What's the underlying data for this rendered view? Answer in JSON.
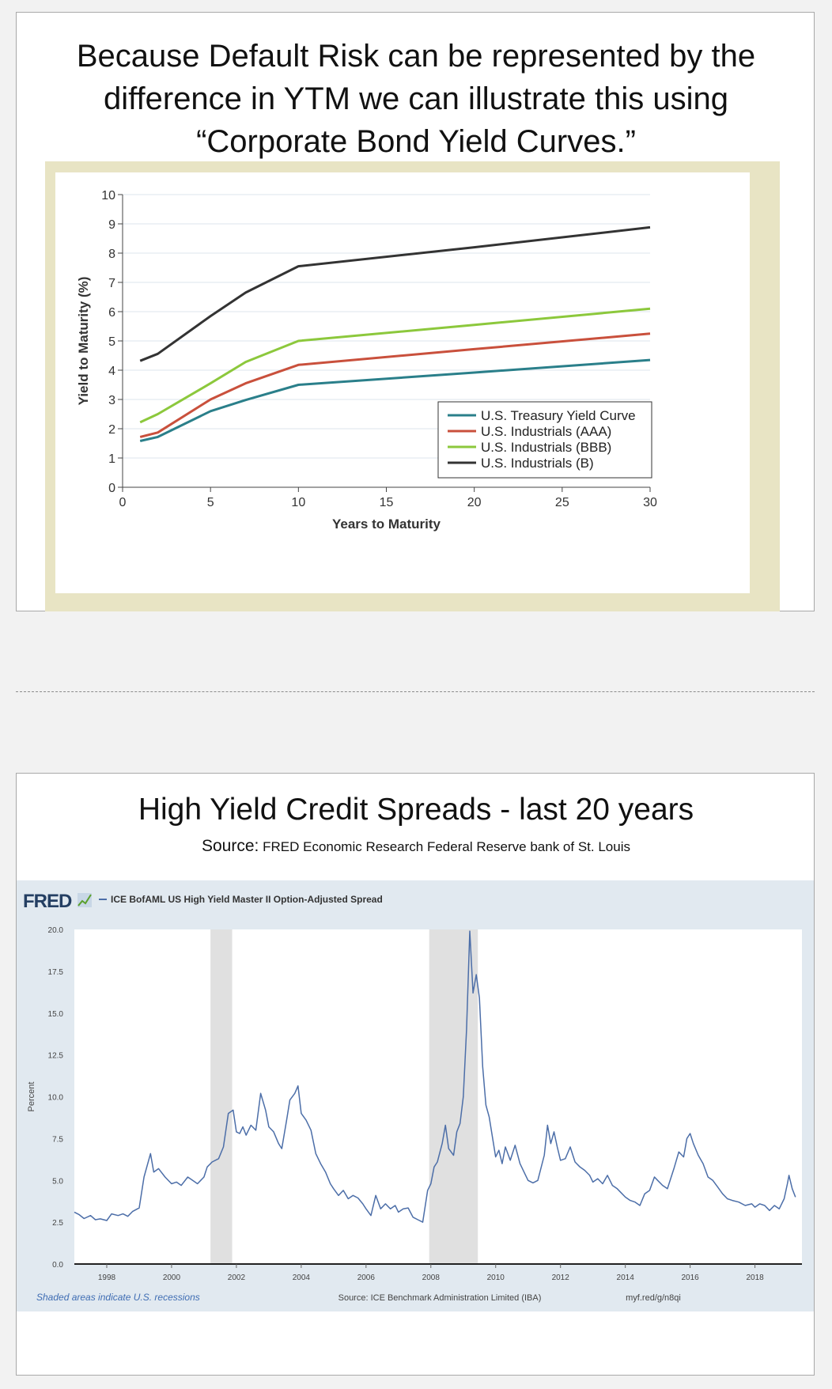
{
  "slide1": {
    "title_lines": [
      "Because Default Risk can be represented by the",
      "difference in YTM we can illustrate this using",
      "“Corporate Bond Yield Curves.”"
    ]
  },
  "slide2": {
    "title": "High Yield Credit Spreads - last 20 years",
    "source_label": "Source:",
    "source_text": "FRED Economic Research Federal Reserve bank of St. Louis"
  },
  "colors": {
    "treasury": "#2a7f8a",
    "aaa": "#c9503c",
    "bbb": "#8cc83c",
    "b": "#333333",
    "fred_line": "#4c6ea8",
    "recession": "#e0e0e0",
    "fred_bg": "#e1e9f0"
  },
  "chart_data": [
    {
      "type": "line",
      "xlabel": "Years to Maturity",
      "ylabel": "Yield to Maturity (%)",
      "xlim": [
        0,
        30
      ],
      "ylim": [
        0,
        10
      ],
      "x_ticks": [
        0,
        5,
        10,
        15,
        20,
        25,
        30
      ],
      "y_ticks": [
        0,
        1,
        2,
        3,
        4,
        5,
        6,
        7,
        8,
        9,
        10
      ],
      "grid": "horizontal",
      "legend_position": "bottom-right",
      "series": [
        {
          "name": "U.S. Treasury Yield Curve",
          "color_key": "treasury",
          "points": [
            [
              1,
              1.58
            ],
            [
              2,
              1.72
            ],
            [
              5,
              2.6
            ],
            [
              7,
              2.98
            ],
            [
              10,
              3.5
            ],
            [
              20,
              3.92
            ],
            [
              30,
              4.35
            ]
          ]
        },
        {
          "name": "U.S. Industrials (AAA)",
          "color_key": "aaa",
          "points": [
            [
              1,
              1.72
            ],
            [
              2,
              1.87
            ],
            [
              5,
              3.0
            ],
            [
              7,
              3.55
            ],
            [
              10,
              4.18
            ],
            [
              20,
              4.72
            ],
            [
              30,
              5.25
            ]
          ]
        },
        {
          "name": "U.S. Industrials (BBB)",
          "color_key": "bbb",
          "points": [
            [
              1,
              2.22
            ],
            [
              2,
              2.5
            ],
            [
              5,
              3.55
            ],
            [
              7,
              4.28
            ],
            [
              10,
              5.0
            ],
            [
              20,
              5.55
            ],
            [
              30,
              6.1
            ]
          ]
        },
        {
          "name": "U.S. Industrials (B)",
          "color_key": "b",
          "points": [
            [
              1,
              4.32
            ],
            [
              2,
              4.56
            ],
            [
              5,
              5.85
            ],
            [
              7,
              6.65
            ],
            [
              10,
              7.55
            ],
            [
              20,
              8.2
            ],
            [
              30,
              8.88
            ]
          ]
        }
      ]
    },
    {
      "type": "line",
      "logo": "FRED",
      "series_name": "ICE BofAML US High Yield Master II Option-Adjusted Spread",
      "ylabel": "Percent",
      "xlim": [
        1997,
        2019.45
      ],
      "ylim": [
        0,
        20
      ],
      "y_ticks": [
        "0.0",
        "2.5",
        "5.0",
        "7.5",
        "10.0",
        "12.5",
        "15.0",
        "17.5",
        "20.0"
      ],
      "x_ticks": [
        "1998",
        "2000",
        "2002",
        "2004",
        "2006",
        "2008",
        "2010",
        "2012",
        "2014",
        "2016",
        "2018"
      ],
      "grid": "none",
      "recessions": [
        [
          2001.2,
          2001.87
        ],
        [
          2007.95,
          2009.45
        ]
      ],
      "footer_left": "Shaded areas indicate U.S. recessions",
      "footer_center": "Source: ICE Benchmark Administration Limited (IBA)",
      "footer_right": "myf.red/g/n8qi",
      "points": [
        [
          1997.0,
          3.1
        ],
        [
          1997.15,
          2.95
        ],
        [
          1997.3,
          2.72
        ],
        [
          1997.5,
          2.9
        ],
        [
          1997.65,
          2.65
        ],
        [
          1997.8,
          2.7
        ],
        [
          1998.0,
          2.6
        ],
        [
          1998.15,
          3.0
        ],
        [
          1998.35,
          2.9
        ],
        [
          1998.5,
          3.0
        ],
        [
          1998.65,
          2.85
        ],
        [
          1998.8,
          3.15
        ],
        [
          1999.0,
          3.35
        ],
        [
          1999.15,
          5.2
        ],
        [
          1999.35,
          6.6
        ],
        [
          1999.45,
          5.5
        ],
        [
          1999.6,
          5.7
        ],
        [
          1999.8,
          5.2
        ],
        [
          2000.0,
          4.8
        ],
        [
          2000.15,
          4.9
        ],
        [
          2000.3,
          4.7
        ],
        [
          2000.5,
          5.2
        ],
        [
          2000.65,
          5.0
        ],
        [
          2000.8,
          4.8
        ],
        [
          2001.0,
          5.2
        ],
        [
          2001.1,
          5.8
        ],
        [
          2001.25,
          6.1
        ],
        [
          2001.45,
          6.3
        ],
        [
          2001.6,
          7.0
        ],
        [
          2001.75,
          9.0
        ],
        [
          2001.9,
          9.2
        ],
        [
          2002.0,
          7.9
        ],
        [
          2002.1,
          7.8
        ],
        [
          2002.2,
          8.2
        ],
        [
          2002.3,
          7.7
        ],
        [
          2002.45,
          8.3
        ],
        [
          2002.6,
          8.0
        ],
        [
          2002.75,
          10.2
        ],
        [
          2002.9,
          9.2
        ],
        [
          2003.0,
          8.2
        ],
        [
          2003.15,
          7.9
        ],
        [
          2003.3,
          7.2
        ],
        [
          2003.4,
          6.9
        ],
        [
          2003.55,
          8.6
        ],
        [
          2003.65,
          9.8
        ],
        [
          2003.8,
          10.2
        ],
        [
          2003.9,
          10.65
        ],
        [
          2004.0,
          9.0
        ],
        [
          2004.15,
          8.6
        ],
        [
          2004.3,
          8.0
        ],
        [
          2004.45,
          6.6
        ],
        [
          2004.6,
          6.0
        ],
        [
          2004.75,
          5.5
        ],
        [
          2004.9,
          4.8
        ],
        [
          2005.0,
          4.5
        ],
        [
          2005.15,
          4.1
        ],
        [
          2005.3,
          4.4
        ],
        [
          2005.45,
          3.9
        ],
        [
          2005.6,
          4.1
        ],
        [
          2005.75,
          3.95
        ],
        [
          2005.9,
          3.6
        ],
        [
          2006.0,
          3.3
        ],
        [
          2006.15,
          2.9
        ],
        [
          2006.3,
          4.1
        ],
        [
          2006.45,
          3.3
        ],
        [
          2006.6,
          3.6
        ],
        [
          2006.75,
          3.3
        ],
        [
          2006.9,
          3.5
        ],
        [
          2007.0,
          3.1
        ],
        [
          2007.15,
          3.3
        ],
        [
          2007.3,
          3.35
        ],
        [
          2007.45,
          2.8
        ],
        [
          2007.6,
          2.65
        ],
        [
          2007.75,
          2.5
        ],
        [
          2007.9,
          4.4
        ],
        [
          2008.0,
          4.8
        ],
        [
          2008.1,
          5.8
        ],
        [
          2008.2,
          6.1
        ],
        [
          2008.35,
          7.2
        ],
        [
          2008.45,
          8.3
        ],
        [
          2008.55,
          6.9
        ],
        [
          2008.7,
          6.5
        ],
        [
          2008.8,
          7.9
        ],
        [
          2008.9,
          8.4
        ],
        [
          2009.0,
          10.0
        ],
        [
          2009.1,
          14.0
        ],
        [
          2009.2,
          19.9
        ],
        [
          2009.3,
          16.2
        ],
        [
          2009.4,
          17.3
        ],
        [
          2009.5,
          15.9
        ],
        [
          2009.6,
          11.8
        ],
        [
          2009.7,
          9.5
        ],
        [
          2009.8,
          8.8
        ],
        [
          2009.9,
          7.6
        ],
        [
          2010.0,
          6.4
        ],
        [
          2010.1,
          6.8
        ],
        [
          2010.2,
          6.0
        ],
        [
          2010.3,
          7.0
        ],
        [
          2010.45,
          6.2
        ],
        [
          2010.6,
          7.1
        ],
        [
          2010.75,
          6.0
        ],
        [
          2010.9,
          5.4
        ],
        [
          2011.0,
          5.0
        ],
        [
          2011.15,
          4.85
        ],
        [
          2011.3,
          5.0
        ],
        [
          2011.5,
          6.5
        ],
        [
          2011.6,
          8.3
        ],
        [
          2011.7,
          7.2
        ],
        [
          2011.8,
          7.9
        ],
        [
          2011.9,
          7.0
        ],
        [
          2012.0,
          6.2
        ],
        [
          2012.15,
          6.3
        ],
        [
          2012.3,
          7.0
        ],
        [
          2012.45,
          6.1
        ],
        [
          2012.6,
          5.8
        ],
        [
          2012.75,
          5.6
        ],
        [
          2012.9,
          5.3
        ],
        [
          2013.0,
          4.9
        ],
        [
          2013.15,
          5.1
        ],
        [
          2013.3,
          4.8
        ],
        [
          2013.45,
          5.3
        ],
        [
          2013.6,
          4.7
        ],
        [
          2013.75,
          4.5
        ],
        [
          2013.9,
          4.2
        ],
        [
          2014.0,
          4.0
        ],
        [
          2014.15,
          3.8
        ],
        [
          2014.3,
          3.7
        ],
        [
          2014.45,
          3.5
        ],
        [
          2014.6,
          4.2
        ],
        [
          2014.75,
          4.4
        ],
        [
          2014.9,
          5.2
        ],
        [
          2015.0,
          5.0
        ],
        [
          2015.15,
          4.7
        ],
        [
          2015.3,
          4.5
        ],
        [
          2015.5,
          5.7
        ],
        [
          2015.65,
          6.7
        ],
        [
          2015.8,
          6.4
        ],
        [
          2015.9,
          7.5
        ],
        [
          2016.0,
          7.8
        ],
        [
          2016.1,
          7.2
        ],
        [
          2016.25,
          6.5
        ],
        [
          2016.4,
          6.0
        ],
        [
          2016.55,
          5.2
        ],
        [
          2016.7,
          5.0
        ],
        [
          2016.85,
          4.6
        ],
        [
          2017.0,
          4.2
        ],
        [
          2017.15,
          3.9
        ],
        [
          2017.3,
          3.8
        ],
        [
          2017.5,
          3.7
        ],
        [
          2017.7,
          3.5
        ],
        [
          2017.9,
          3.6
        ],
        [
          2018.0,
          3.4
        ],
        [
          2018.15,
          3.6
        ],
        [
          2018.3,
          3.5
        ],
        [
          2018.45,
          3.2
        ],
        [
          2018.6,
          3.5
        ],
        [
          2018.75,
          3.3
        ],
        [
          2018.9,
          3.9
        ],
        [
          2019.0,
          4.8
        ],
        [
          2019.05,
          5.3
        ],
        [
          2019.15,
          4.5
        ],
        [
          2019.25,
          4.0
        ]
      ]
    }
  ]
}
